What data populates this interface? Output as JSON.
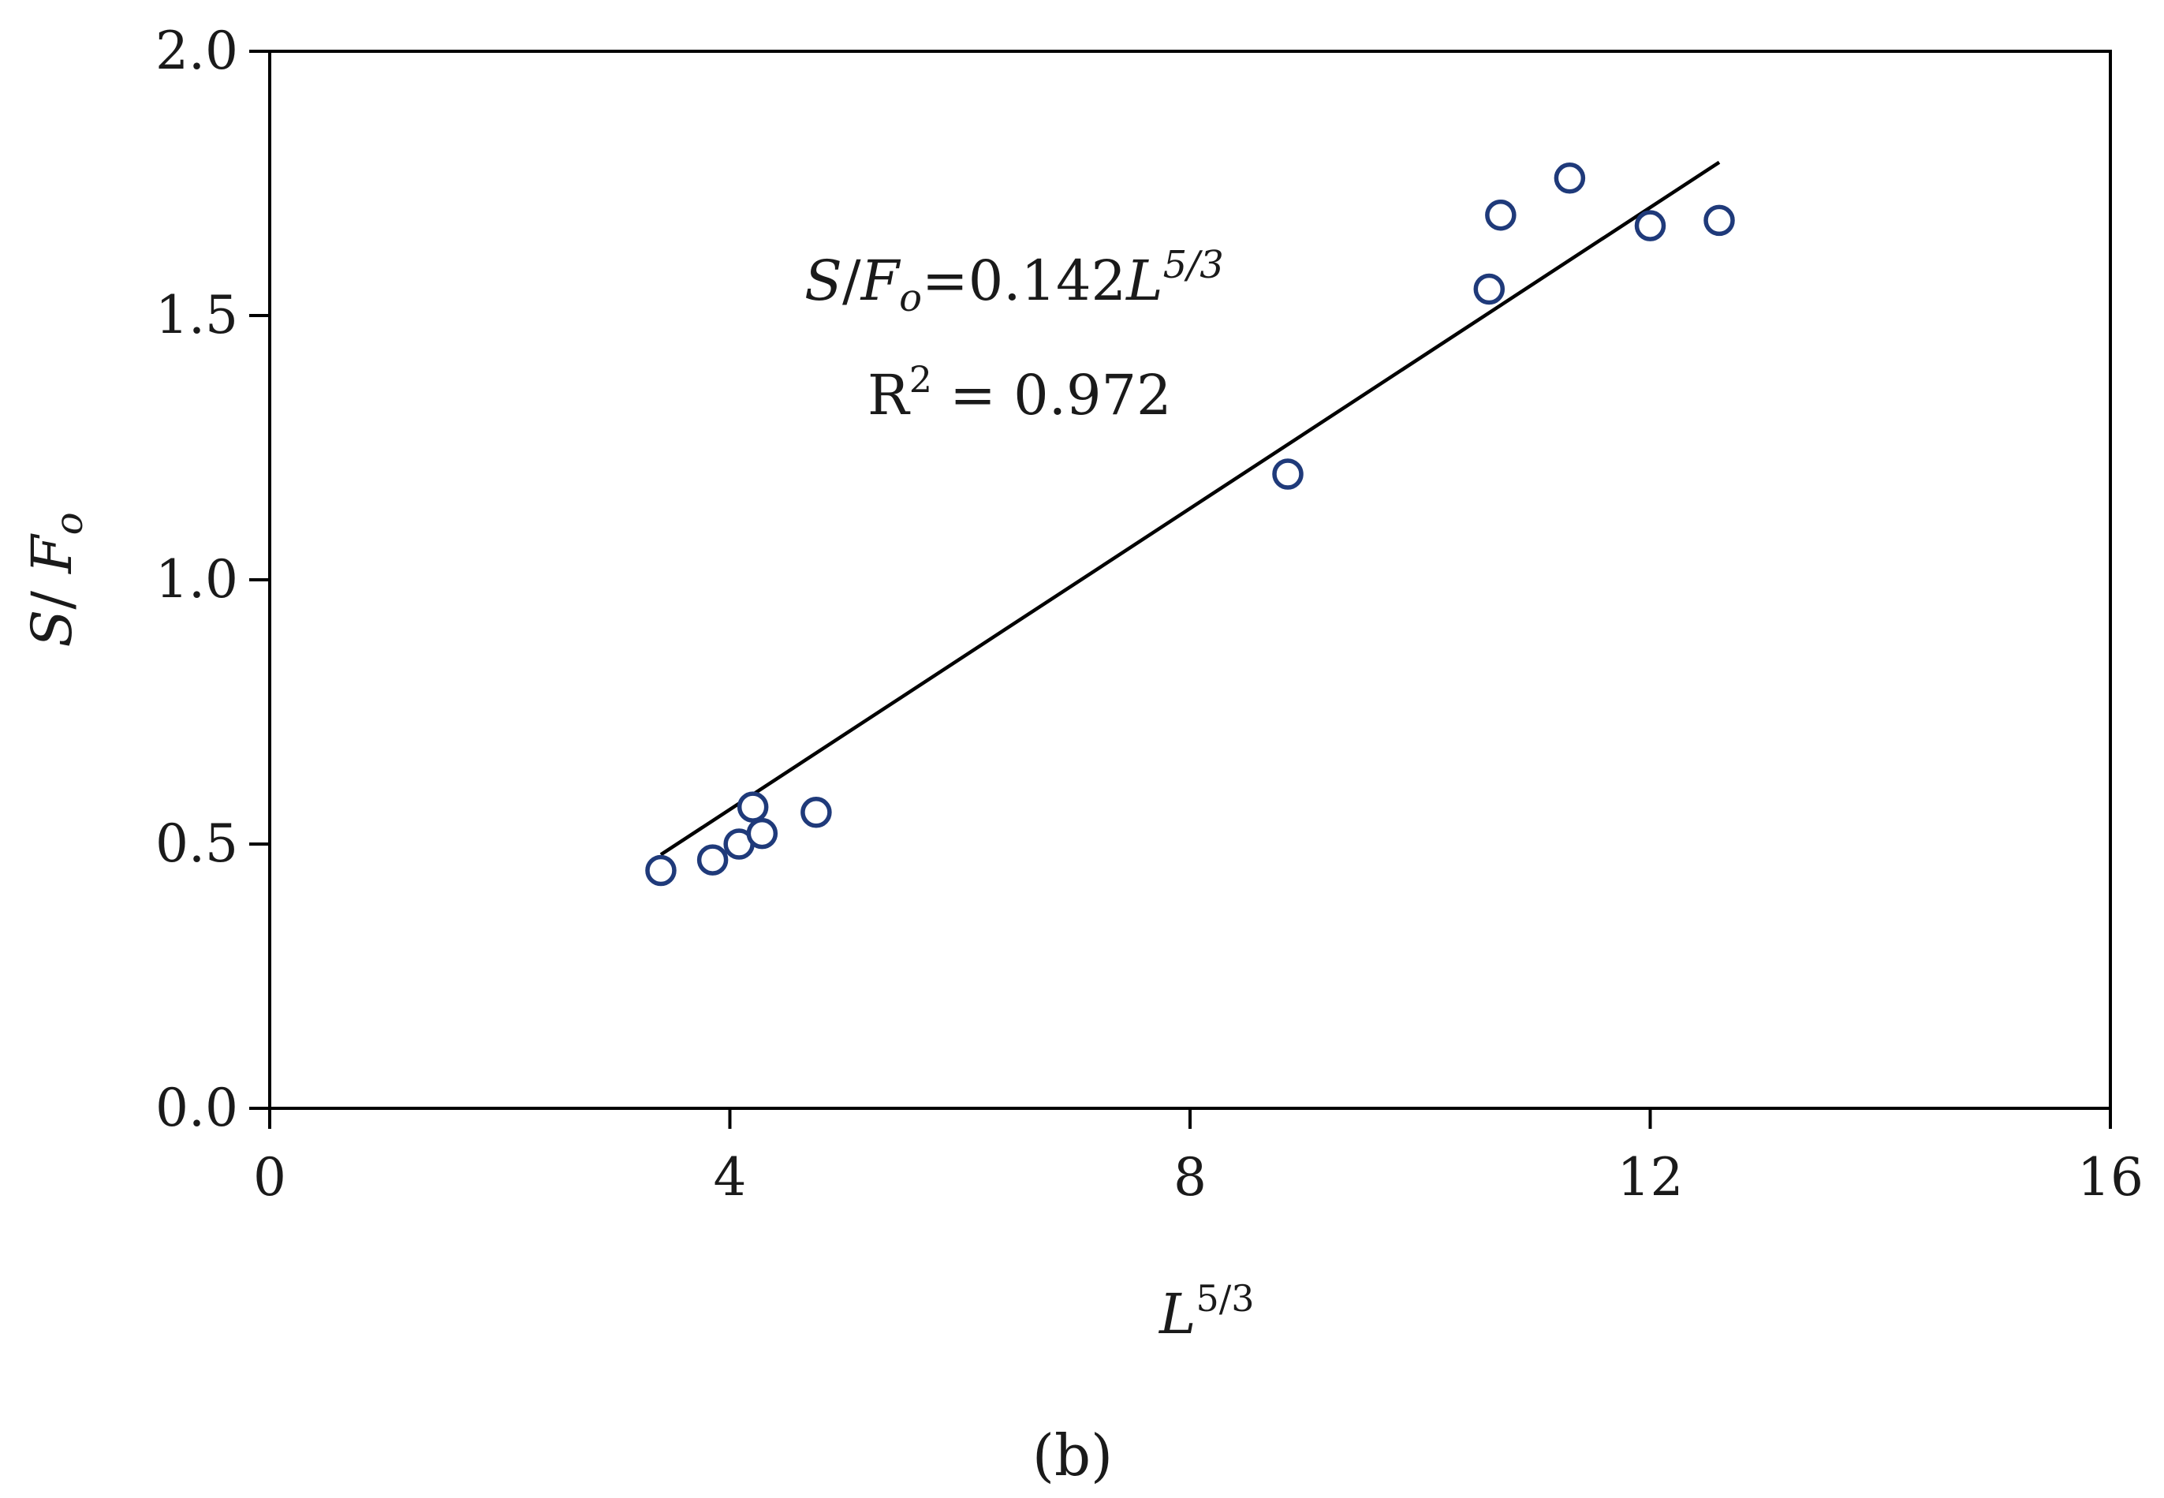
{
  "chart_data": {
    "type": "scatter",
    "xlim": [
      0,
      16
    ],
    "ylim": [
      0,
      2.0
    ],
    "x_ticks": [
      "0",
      "4",
      "8",
      "12",
      "16"
    ],
    "y_ticks": [
      "0.0",
      "0.5",
      "1.0",
      "1.5",
      "2.0"
    ],
    "grid": false,
    "xlabel": {
      "base": "L",
      "sup": "5/3"
    },
    "ylabel": {
      "s": "S",
      "sep": "/ ",
      "f": "F",
      "sub": "o"
    },
    "marker_color": "#1f3a7a",
    "line_color": "#000000",
    "points": [
      {
        "x": 3.4,
        "y": 0.45
      },
      {
        "x": 3.85,
        "y": 0.47
      },
      {
        "x": 4.08,
        "y": 0.5
      },
      {
        "x": 4.2,
        "y": 0.57
      },
      {
        "x": 4.28,
        "y": 0.52
      },
      {
        "x": 4.75,
        "y": 0.56
      },
      {
        "x": 8.85,
        "y": 1.2
      },
      {
        "x": 10.6,
        "y": 1.55
      },
      {
        "x": 10.7,
        "y": 1.69
      },
      {
        "x": 11.3,
        "y": 1.76
      },
      {
        "x": 12.0,
        "y": 1.67
      },
      {
        "x": 12.6,
        "y": 1.68
      }
    ],
    "fit_line": {
      "x": [
        3.4,
        12.6
      ],
      "y": [
        0.48,
        1.79
      ]
    },
    "annotation": {
      "eq_s": "S",
      "eq_sep": "/",
      "eq_f": "F",
      "eq_sub": "o",
      "eq_mid": "=0.142",
      "eq_l": "L",
      "eq_sup": "5/3",
      "r2_prefix": "R",
      "r2_sup": "2",
      "r2_value": " = 0.972"
    },
    "panel_label": "(b)"
  }
}
